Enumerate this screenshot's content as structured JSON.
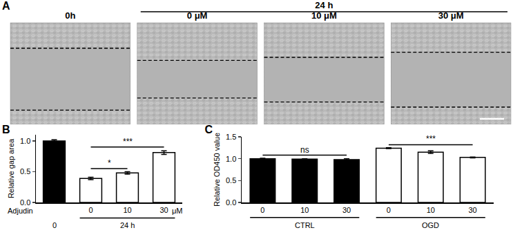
{
  "panel_a": {
    "title": "A",
    "groups": [
      {
        "label": "0h",
        "from": 0,
        "to": 0
      },
      {
        "label": "24 h",
        "from": 1,
        "to": 3
      }
    ],
    "image_labels": [
      null,
      "0 μM",
      "10 μM",
      "30 μM"
    ]
  },
  "chart_data": [
    {
      "type": "bar",
      "title": "B",
      "ylabel": "Relative gap area",
      "xlabel": "Adjudin",
      "x_unit": "μM",
      "categories": [
        null,
        "0",
        "10",
        "30"
      ],
      "values": [
        1.0,
        0.39,
        0.48,
        0.81
      ],
      "errors": [
        0.02,
        0.02,
        0.02,
        0.03
      ],
      "colors": [
        "#000000",
        "#ffffff",
        "#ffffff",
        "#ffffff"
      ],
      "groups": [
        {
          "label": "0",
          "from": 0,
          "to": 0
        },
        {
          "label": "24 h",
          "from": 1,
          "to": 3
        }
      ],
      "significance": [
        {
          "from": 1,
          "to": 2,
          "y": 0.55,
          "label": "*"
        },
        {
          "from": 1,
          "to": 3,
          "y": 0.9,
          "label": "***"
        }
      ],
      "ylim": [
        0,
        1.1
      ],
      "yticks": [
        {
          "value": 0,
          "label": "0.0"
        },
        0.5,
        {
          "value": 1,
          "label": "1.0"
        }
      ],
      "grid": false
    },
    {
      "type": "bar",
      "title": "C",
      "ylabel": "Relative OD450 value",
      "categories": [
        "0",
        "10",
        "30",
        "0",
        "10",
        "30"
      ],
      "values": [
        1.0,
        0.99,
        0.98,
        1.24,
        1.15,
        1.03
      ],
      "errors": [
        0.01,
        0.01,
        0.02,
        0.01,
        0.03,
        0.01
      ],
      "colors": [
        "#000000",
        "#000000",
        "#000000",
        "#ffffff",
        "#ffffff",
        "#ffffff"
      ],
      "groups": [
        {
          "label": "CTRL",
          "from": 0,
          "to": 2
        },
        {
          "label": "OGD",
          "from": 3,
          "to": 5
        }
      ],
      "significance": [
        {
          "from": 0,
          "to": 2,
          "y": 1.08,
          "label": "ns"
        },
        {
          "from": 3,
          "to": 5,
          "y": 1.32,
          "label": "***"
        }
      ],
      "ylim": [
        0,
        1.5
      ],
      "yticks": [
        {
          "value": 0,
          "label": "0.0"
        },
        0.5,
        {
          "value": 1,
          "label": "1.0"
        },
        1.5
      ],
      "grid": false
    }
  ]
}
